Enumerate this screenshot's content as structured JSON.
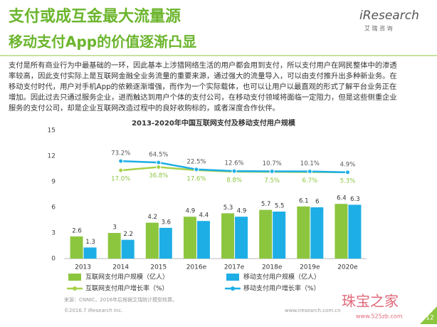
{
  "header": {
    "title": "支付或成互金最大流量源",
    "subtitle": "移动支付App的价值逐渐凸显",
    "logo": "iResearch",
    "logo_cn": "艾 瑞 咨 询"
  },
  "paragraph": [
    "支付是所有商业行为中最基础的一环，因此基本上涉猎网络生活的用户都会用到支付，所以支付用户在网民整体中的渗透",
    "率较高，因此支付实际上是互联网金融全业务流量的重要来源，通过强大的流量导入，可以由支付推升出多种新业务。在",
    "移动支付时代，用户对手机App的依赖逐渐增强，而作为一个实际载体，也可以让用户以最直观的形式了解平台业务正在",
    "增加。因此过去只通过服务企业，进而触达到用户个体的支付公司，在移动支付领域将面临一定阻力，但是这些侧重企业",
    "服务的支付公司，却是企业互联网改造过程中的良好收购标的，或者深度合作伙伴。"
  ],
  "chart_data": {
    "type": "bar",
    "title": "2013-2020年中国互联网支付及移动支付用户规模",
    "categories": [
      "2013",
      "2014",
      "2015",
      "2016e",
      "2017e",
      "2018e",
      "2019e",
      "2020e"
    ],
    "series": [
      {
        "name": "互联网支付用户规模（亿人）",
        "color": "#8cc63f",
        "values": [
          2.6,
          3.0,
          4.2,
          4.9,
          5.3,
          5.7,
          6.1,
          6.4
        ]
      },
      {
        "name": "移动支付用户规模（亿人）",
        "color": "#1eaee6",
        "values": [
          1.3,
          2.2,
          3.6,
          4.4,
          4.9,
          5.5,
          6.0,
          6.3
        ]
      },
      {
        "name": "互联网支付用户增长率（%）",
        "type": "line",
        "axis": "y2",
        "color": "#a8d14a",
        "values": [
          null,
          17.0,
          36.8,
          17.6,
          8.8,
          7.5,
          6.7,
          5.3
        ],
        "value_labels": [
          null,
          "17.0%",
          "36.8%",
          "17.6%",
          "8.8%",
          "7.5%",
          "6.7%",
          "5.3%"
        ]
      },
      {
        "name": "移动支付用户增长率（%）",
        "type": "line",
        "axis": "y2",
        "color": "#1eaee6",
        "values": [
          null,
          73.2,
          64.5,
          22.5,
          12.6,
          10.7,
          10.1,
          4.9
        ],
        "value_labels": [
          null,
          "73.2%",
          "64.5%",
          "22.5%",
          "12.6%",
          "10.7%",
          "10.1%",
          "4.9%"
        ]
      }
    ],
    "ylim": [
      0,
      15
    ],
    "yticks": [
      0,
      3,
      6,
      9,
      12,
      15
    ],
    "y2lim": [
      -520,
      260
    ]
  },
  "footer": {
    "source": "来源：CNNIC，2016年后根据艾瑞统计模型核算。",
    "copyright": "©2016.7 iResearch Inc.",
    "site": "www.iresearch.com.cn",
    "page": "12",
    "watermark": "珠宝之家",
    "watermark_url": "www.525zb.com"
  }
}
